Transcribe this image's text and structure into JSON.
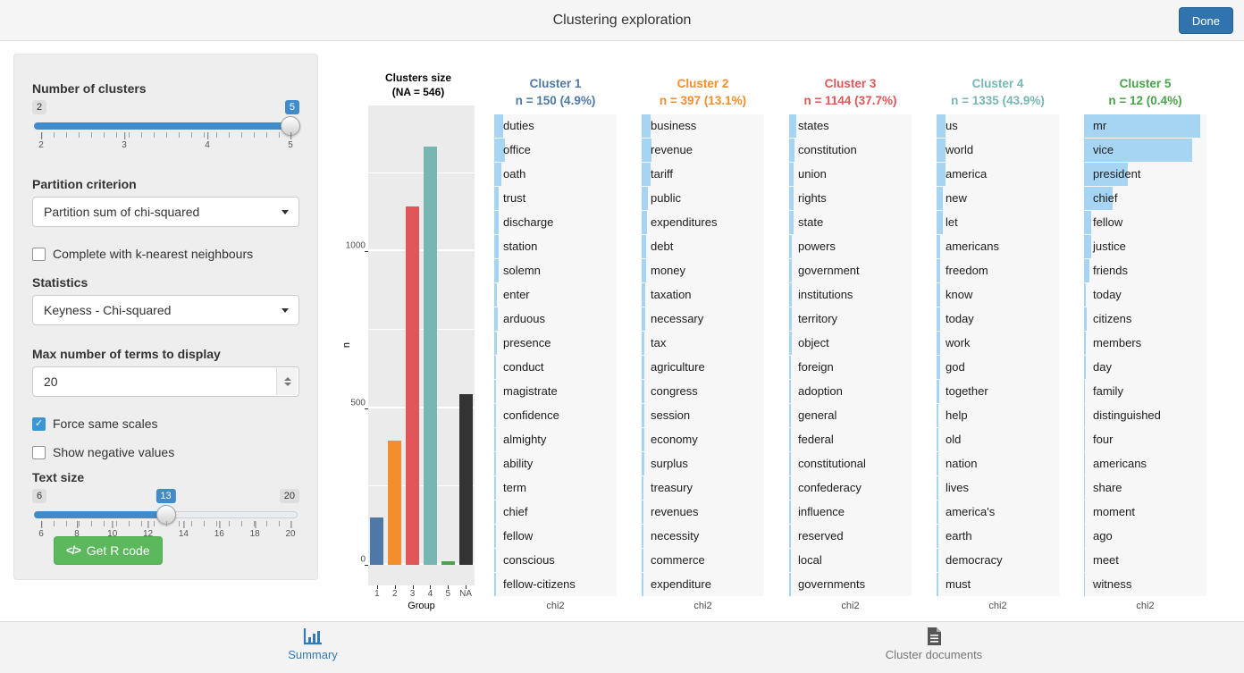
{
  "header": {
    "title": "Clustering exploration",
    "done_label": "Done"
  },
  "sidebar": {
    "number_of_clusters": {
      "label": "Number of clusters",
      "min_label": "2",
      "value_label": "5",
      "value_pct": 100,
      "ticks": [
        "2",
        "3",
        "4",
        "5"
      ]
    },
    "partition_criterion": {
      "label": "Partition criterion",
      "selected": "Partition sum of chi-squared"
    },
    "knn_checkbox": {
      "label": "Complete with k-nearest neighbours",
      "checked": false
    },
    "statistics": {
      "label": "Statistics",
      "selected": "Keyness - Chi-squared"
    },
    "max_terms": {
      "label": "Max number of terms to display",
      "value": "20"
    },
    "force_same_scales": {
      "label": "Force same scales",
      "checked": true
    },
    "show_negative": {
      "label": "Show negative values",
      "checked": false
    },
    "text_size": {
      "label": "Text size",
      "min_label": "6",
      "max_label": "20",
      "value_label": "13",
      "value_pct": 50,
      "ticks": [
        "6",
        "8",
        "10",
        "12",
        "14",
        "16",
        "18",
        "20"
      ]
    },
    "get_r_code_label": "Get R code"
  },
  "chart_data": [
    {
      "type": "bar",
      "title": "Clusters size",
      "subtitle": "(NA = 546)",
      "categories": [
        "1",
        "2",
        "3",
        "4",
        "5",
        "NA"
      ],
      "values": [
        150,
        397,
        1144,
        1335,
        12,
        546
      ],
      "bar_colors": [
        "#4E79A7",
        "#F28E2B",
        "#E15759",
        "#76B7B2",
        "#4AA34A",
        "#333333"
      ],
      "xlabel": "Group",
      "ylabel": "n",
      "yticks": [
        0,
        500,
        1000
      ],
      "minor_gridlines": [
        250,
        750,
        1250
      ],
      "ylim": [
        0,
        1400
      ],
      "grid": true,
      "panel_background": "#EBEBEB"
    },
    {
      "type": "bar",
      "orientation": "horizontal",
      "title": "Cluster 1",
      "subtitle": "n = 150 (4.9%)",
      "color": "#4E79A7",
      "xlabel": "chi2",
      "bar_color": "#A5D5F3",
      "values_unit": "percent of shared chi2 axis (numeric axis labels not shown)",
      "categories": [
        "duties",
        "office",
        "oath",
        "trust",
        "discharge",
        "station",
        "solemn",
        "enter",
        "arduous",
        "presence",
        "conduct",
        "magistrate",
        "confidence",
        "almighty",
        "ability",
        "term",
        "chief",
        "fellow",
        "conscious",
        "fellow-citizens"
      ],
      "values": [
        7.5,
        8.5,
        5.5,
        3.5,
        4.0,
        3.5,
        3.5,
        2.2,
        2.8,
        2.0,
        1.8,
        1.8,
        1.8,
        1.6,
        1.6,
        1.4,
        1.4,
        1.3,
        1.3,
        1.3
      ]
    },
    {
      "type": "bar",
      "orientation": "horizontal",
      "title": "Cluster 2",
      "subtitle": "n = 397 (13.1%)",
      "color": "#F28E2B",
      "xlabel": "chi2",
      "bar_color": "#A5D5F3",
      "values_unit": "percent of shared chi2 axis (numeric axis labels not shown)",
      "categories": [
        "business",
        "revenue",
        "tariff",
        "public",
        "expenditures",
        "debt",
        "money",
        "taxation",
        "necessary",
        "tax",
        "agriculture",
        "congress",
        "session",
        "economy",
        "surplus",
        "treasury",
        "revenues",
        "necessity",
        "commerce",
        "expenditure"
      ],
      "values": [
        7.5,
        8.0,
        7.0,
        5.0,
        4.2,
        4.0,
        3.5,
        2.6,
        2.6,
        2.3,
        2.1,
        2.1,
        2.1,
        1.9,
        1.9,
        1.7,
        1.7,
        1.6,
        1.6,
        1.4
      ]
    },
    {
      "type": "bar",
      "orientation": "horizontal",
      "title": "Cluster 3",
      "subtitle": "n = 1144 (37.7%)",
      "color": "#E15759",
      "xlabel": "chi2",
      "bar_color": "#A5D5F3",
      "values_unit": "percent of shared chi2 axis (numeric axis labels not shown)",
      "categories": [
        "states",
        "constitution",
        "union",
        "rights",
        "state",
        "powers",
        "government",
        "institutions",
        "territory",
        "object",
        "foreign",
        "adoption",
        "general",
        "federal",
        "constitutional",
        "confederacy",
        "influence",
        "reserved",
        "local",
        "governments"
      ],
      "values": [
        6.0,
        4.5,
        4.0,
        3.6,
        3.6,
        2.3,
        2.3,
        2.0,
        1.9,
        1.9,
        1.3,
        1.3,
        1.3,
        1.1,
        1.2,
        1.2,
        1.1,
        1.1,
        1.1,
        1.2
      ]
    },
    {
      "type": "bar",
      "orientation": "horizontal",
      "title": "Cluster 4",
      "subtitle": "n = 1335 (43.9%)",
      "color": "#76B7B2",
      "xlabel": "chi2",
      "bar_color": "#A5D5F3",
      "values_unit": "percent of shared chi2 axis (numeric axis labels not shown)",
      "categories": [
        "us",
        "world",
        "america",
        "new",
        "let",
        "americans",
        "freedom",
        "know",
        "today",
        "work",
        "god",
        "together",
        "help",
        "old",
        "nation",
        "lives",
        "america's",
        "earth",
        "democracy",
        "must"
      ],
      "values": [
        7.5,
        7.5,
        7.5,
        5.0,
        5.0,
        3.1,
        3.1,
        2.9,
        2.9,
        2.6,
        2.6,
        2.3,
        1.6,
        1.6,
        1.6,
        1.4,
        1.4,
        1.4,
        1.6,
        1.1
      ]
    },
    {
      "type": "bar",
      "orientation": "horizontal",
      "title": "Cluster 5",
      "subtitle": "n = 12 (0.4%)",
      "color": "#4AA34A",
      "xlabel": "chi2",
      "bar_color": "#A5D5F3",
      "values_unit": "percent of shared chi2 axis (numeric axis labels not shown)",
      "categories": [
        "mr",
        "vice",
        "president",
        "chief",
        "fellow",
        "justice",
        "friends",
        "today",
        "citizens",
        "members",
        "day",
        "family",
        "distinguished",
        "four",
        "americans",
        "share",
        "moment",
        "ago",
        "meet",
        "witness"
      ],
      "values": [
        95,
        88,
        36,
        23,
        5.5,
        5.5,
        4.5,
        1.8,
        2.2,
        1.8,
        1.2,
        0.6,
        0.5,
        0.4,
        0.4,
        0.3,
        0.3,
        0.3,
        0.2,
        0.2
      ]
    }
  ],
  "footer": {
    "tabs": [
      {
        "label": "Summary",
        "active": true
      },
      {
        "label": "Cluster documents",
        "active": false
      }
    ]
  }
}
